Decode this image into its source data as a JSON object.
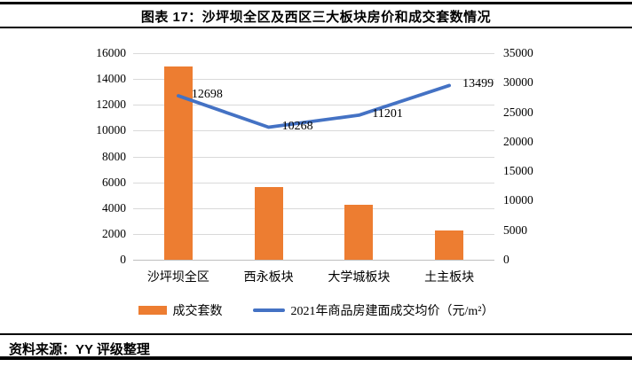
{
  "header": {
    "title": "图表 17：沙坪坝全区及西区三大板块房价和成交套数情况"
  },
  "footer": {
    "source": "资料来源：YY 评级整理"
  },
  "chart_data": {
    "type": "bar+line combo",
    "title": "沙坪坝全区及西区三大板块房价和成交套数情况",
    "categories": [
      "沙坪坝全区",
      "西永板块",
      "大学城板块",
      "土主板块"
    ],
    "series": [
      {
        "name": "成交套数",
        "type": "bar",
        "axis": "left",
        "color": "#ed7d31",
        "values": [
          15000,
          5600,
          4250,
          2250
        ]
      },
      {
        "name": "2021年商品房建面成交均价（元/m²）",
        "type": "line",
        "axis": "left",
        "color": "#4472c4",
        "values": [
          12698,
          10268,
          11201,
          13499
        ],
        "point_labels": [
          "12698",
          "10268",
          "11201",
          "13499"
        ]
      }
    ],
    "left_axis": {
      "min": 0,
      "max": 16000,
      "step": 2000,
      "ticks": [
        "16000",
        "14000",
        "12000",
        "10000",
        "8000",
        "6000",
        "4000",
        "2000",
        "0"
      ]
    },
    "right_axis": {
      "min": 0,
      "max": 35000,
      "step": 5000,
      "ticks": [
        "35000",
        "30000",
        "25000",
        "20000",
        "15000",
        "10000",
        "5000",
        "0"
      ]
    },
    "grid": {
      "on": true,
      "color": "#d9d9d9",
      "axis_line_color": "#bfbfbf"
    },
    "legend_position": "bottom"
  }
}
